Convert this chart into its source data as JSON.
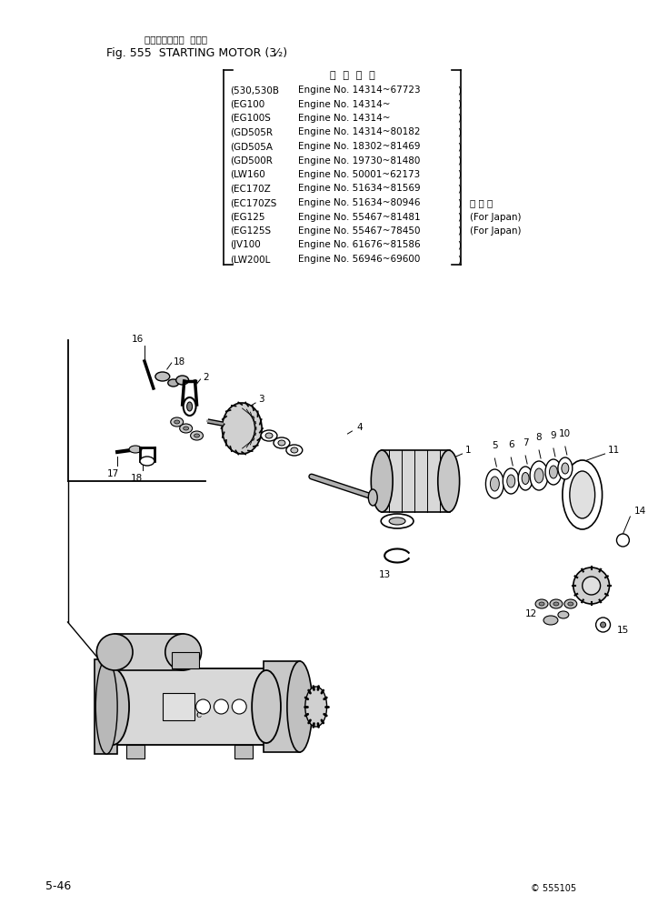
{
  "title_jp": "スターティング  モータ",
  "title_en": "Fig. 555  STARTING MOTOR (3⁄₂)",
  "header": "適  用  号  機",
  "models": [
    [
      "530,530B",
      "Engine No. 14314~67723",
      true,
      true
    ],
    [
      "EG100",
      "Engine No. 14314~",
      true,
      false
    ],
    [
      "EG100S",
      "Engine No. 14314~",
      true,
      false
    ],
    [
      "GD505R",
      "Engine No. 14314~80182",
      true,
      true
    ],
    [
      "GD505A",
      "Engine No. 18302~81469",
      true,
      true
    ],
    [
      "GD500R",
      "Engine No. 19730~81480",
      true,
      true
    ],
    [
      "LW160",
      "Engine No. 50001~62173",
      true,
      true
    ],
    [
      "EC170Z",
      "Engine No. 51634~81569",
      true,
      true
    ],
    [
      "EC170ZS",
      "Engine No. 51634~80946",
      true,
      true
    ],
    [
      "EG125",
      "Engine No. 55467~81481",
      true,
      true
    ],
    [
      "EG125S",
      "Engine No. 55467~78450",
      true,
      true
    ],
    [
      "JV100",
      "Engine No. 61676~81586",
      true,
      true
    ],
    [
      "LW200L",
      "Engine No. 56946~69600",
      true,
      true
    ]
  ],
  "kokunai_row": 8,
  "japan_rows": [
    9,
    10
  ],
  "page": "5-46",
  "copyright": "©",
  "fig_num": "555105",
  "bg_color": "#ffffff"
}
